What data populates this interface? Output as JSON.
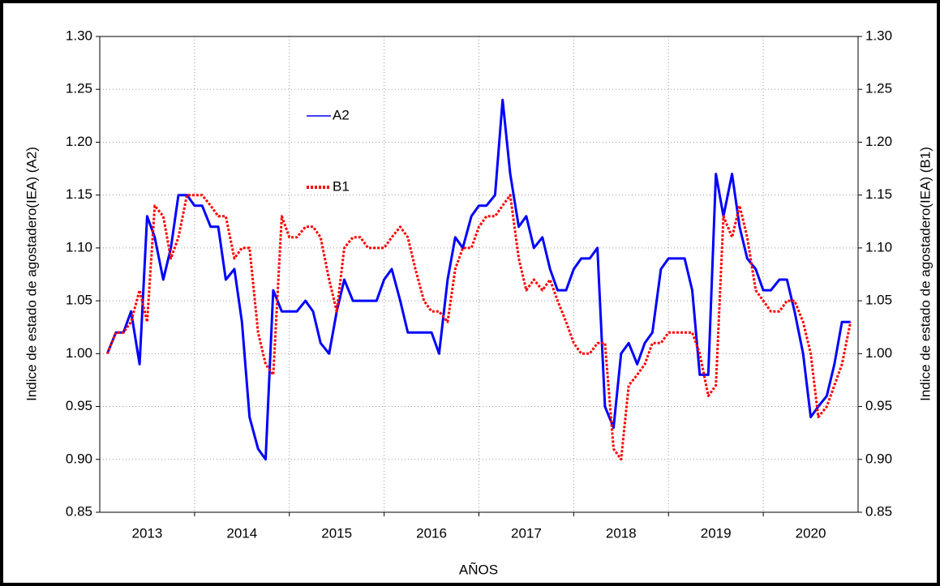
{
  "chart_data": {
    "type": "line",
    "x_label": "AÑOS",
    "y_label": "Indice de estado de agostadero(IEA) (A2)",
    "y2_label": "Indice de estado de agostadero(IEA) (B1)",
    "x": [
      2012.58,
      2012.67,
      2012.75,
      2012.83,
      2012.92,
      2013.0,
      2013.08,
      2013.17,
      2013.25,
      2013.33,
      2013.42,
      2013.5,
      2013.58,
      2013.67,
      2013.75,
      2013.83,
      2013.92,
      2014.0,
      2014.08,
      2014.17,
      2014.25,
      2014.33,
      2014.42,
      2014.5,
      2014.58,
      2014.67,
      2014.75,
      2014.83,
      2014.92,
      2015.0,
      2015.08,
      2015.17,
      2015.25,
      2015.33,
      2015.42,
      2015.5,
      2015.58,
      2015.67,
      2015.75,
      2015.83,
      2015.92,
      2016.0,
      2016.08,
      2016.17,
      2016.25,
      2016.33,
      2016.42,
      2016.5,
      2016.58,
      2016.67,
      2016.75,
      2016.83,
      2016.92,
      2017.0,
      2017.08,
      2017.17,
      2017.25,
      2017.33,
      2017.42,
      2017.5,
      2017.58,
      2017.67,
      2017.75,
      2017.83,
      2017.92,
      2018.0,
      2018.08,
      2018.17,
      2018.25,
      2018.33,
      2018.42,
      2018.5,
      2018.58,
      2018.67,
      2018.75,
      2018.83,
      2018.92,
      2019.0,
      2019.08,
      2019.17,
      2019.25,
      2019.33,
      2019.42,
      2019.5,
      2019.58,
      2019.67,
      2019.75,
      2019.83,
      2019.92,
      2020.0,
      2020.08,
      2020.17,
      2020.25,
      2020.33,
      2020.42
    ],
    "series": [
      {
        "name": "A2",
        "color": "#0000ff",
        "dash": "solid",
        "axis": "y",
        "values": [
          1.0,
          1.02,
          1.02,
          1.04,
          0.99,
          1.13,
          1.11,
          1.07,
          1.1,
          1.15,
          1.15,
          1.14,
          1.14,
          1.12,
          1.12,
          1.07,
          1.08,
          1.03,
          0.94,
          0.91,
          0.9,
          1.06,
          1.04,
          1.04,
          1.04,
          1.05,
          1.04,
          1.01,
          1.0,
          1.04,
          1.07,
          1.05,
          1.05,
          1.05,
          1.05,
          1.07,
          1.08,
          1.05,
          1.02,
          1.02,
          1.02,
          1.02,
          1.0,
          1.07,
          1.11,
          1.1,
          1.13,
          1.14,
          1.14,
          1.15,
          1.24,
          1.17,
          1.12,
          1.13,
          1.1,
          1.11,
          1.08,
          1.06,
          1.06,
          1.08,
          1.09,
          1.09,
          1.1,
          0.95,
          0.93,
          1.0,
          1.01,
          0.99,
          1.01,
          1.02,
          1.08,
          1.09,
          1.09,
          1.09,
          1.06,
          0.98,
          0.98,
          1.17,
          1.13,
          1.17,
          1.12,
          1.09,
          1.08,
          1.06,
          1.06,
          1.07,
          1.07,
          1.04,
          1.0,
          0.94,
          0.95,
          0.96,
          0.99,
          1.03,
          1.03
        ]
      },
      {
        "name": "B1",
        "color": "#ff0000",
        "dash": "dotted",
        "axis": "y2",
        "values": [
          1.0,
          1.02,
          1.02,
          1.03,
          1.06,
          1.03,
          1.14,
          1.13,
          1.09,
          1.11,
          1.15,
          1.15,
          1.15,
          1.14,
          1.13,
          1.13,
          1.09,
          1.1,
          1.1,
          1.02,
          0.99,
          0.98,
          1.13,
          1.11,
          1.11,
          1.12,
          1.12,
          1.11,
          1.07,
          1.04,
          1.1,
          1.11,
          1.11,
          1.1,
          1.1,
          1.1,
          1.11,
          1.12,
          1.11,
          1.08,
          1.05,
          1.04,
          1.04,
          1.03,
          1.08,
          1.1,
          1.1,
          1.12,
          1.13,
          1.13,
          1.14,
          1.15,
          1.09,
          1.06,
          1.07,
          1.06,
          1.07,
          1.05,
          1.03,
          1.01,
          1.0,
          1.0,
          1.01,
          1.01,
          0.91,
          0.9,
          0.97,
          0.98,
          0.99,
          1.01,
          1.01,
          1.02,
          1.02,
          1.02,
          1.02,
          1.0,
          0.96,
          0.97,
          1.13,
          1.11,
          1.14,
          1.11,
          1.06,
          1.05,
          1.04,
          1.04,
          1.05,
          1.05,
          1.03,
          1.0,
          0.94,
          0.95,
          0.97,
          0.99,
          1.03
        ]
      }
    ],
    "xlim": [
      2012.5,
      2020.5
    ],
    "xticks": [
      2013,
      2014,
      2015,
      2016,
      2017,
      2018,
      2019,
      2020
    ],
    "ylim": [
      0.85,
      1.3
    ],
    "yticks": [
      0.85,
      {
        "value": 0.9,
        "label": "0.90"
      },
      0.95,
      {
        "value": 1.0,
        "label": "1.00"
      },
      1.05,
      {
        "value": 1.1,
        "label": "1.10"
      },
      1.15,
      {
        "value": 1.2,
        "label": "1.20"
      },
      1.25,
      {
        "value": 1.3,
        "label": "1.30"
      }
    ],
    "y2lim": [
      0.85,
      1.3
    ],
    "y2ticks": [
      0.85,
      {
        "value": 0.9,
        "label": "0.90"
      },
      0.95,
      {
        "value": 1.0,
        "label": "1.00"
      },
      1.05,
      {
        "value": 1.1,
        "label": "1.10"
      },
      1.15,
      {
        "value": 1.2,
        "label": "1.20"
      },
      1.25,
      {
        "value": 1.3,
        "label": "1.30"
      }
    ],
    "grid": true,
    "legend": "upper-left"
  }
}
